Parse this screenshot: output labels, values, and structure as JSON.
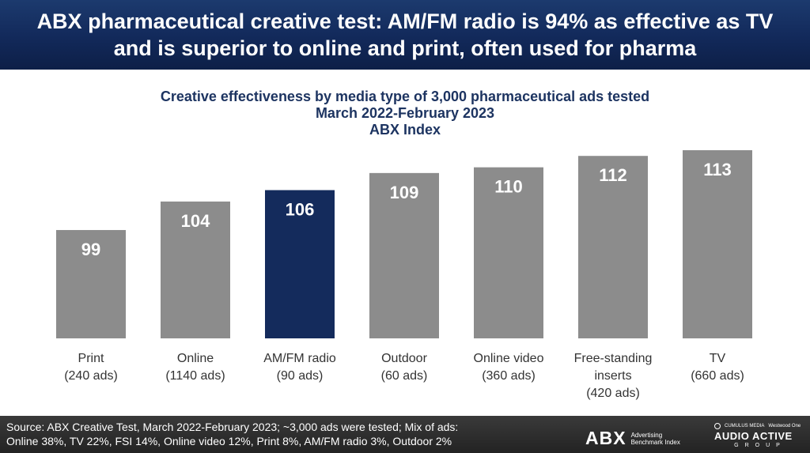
{
  "headline": "ABX pharmaceutical creative test: AM/FM radio is 94% as effective as TV and is superior to online and print, often used for pharma",
  "chart_data": {
    "type": "bar",
    "title_lines": [
      "Creative effectiveness by media type of 3,000 pharmaceutical ads tested",
      "March 2022-February 2023",
      "ABX Index"
    ],
    "categories": [
      [
        "Print",
        "(240 ads)"
      ],
      [
        "Online",
        "(1140 ads)"
      ],
      [
        "AM/FM radio",
        "(90 ads)"
      ],
      [
        "Outdoor",
        "(60 ads)"
      ],
      [
        "Online video",
        "(360 ads)"
      ],
      [
        "Free-standing",
        "inserts",
        "(420 ads)"
      ],
      [
        "TV",
        "(660 ads)"
      ]
    ],
    "values": [
      99,
      104,
      106,
      109,
      110,
      112,
      113
    ],
    "highlight_index": 2,
    "colors": {
      "bar": "#8c8c8c",
      "highlight": "#142b5c",
      "value_label": "#ffffff",
      "category_label": "#333333"
    },
    "axis_min": 80,
    "axis_max": 113,
    "grid": false,
    "legend": "none"
  },
  "footer": {
    "source_line1": "Source: ABX Creative Test, March 2022-February 2023; ~3,000 ads were tested; Mix of ads:",
    "source_line2": "Online 38%, TV  22%, FSI 14%, Online video 12%, Print 8%, AM/FM radio 3%, Outdoor 2%",
    "abx_logo_text": "ABX",
    "abx_logo_sub1": "Advertising",
    "abx_logo_sub2": "Benchmark Index",
    "aag_top_left": "CUMULUS MEDIA",
    "aag_top_right": "Westwood One",
    "aag_main": "AUDIO ACTIVE",
    "aag_group": "GROUP"
  }
}
